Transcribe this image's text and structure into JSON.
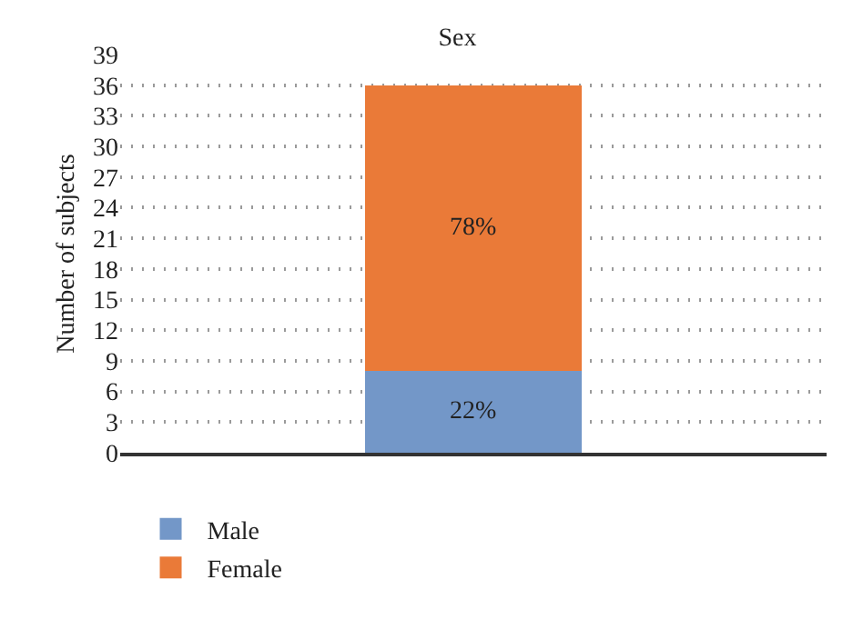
{
  "chart_data": {
    "type": "bar",
    "title": "Sex",
    "ylabel": "Number of subjects",
    "categories": [
      null
    ],
    "stacked": true,
    "series": [
      {
        "name": "Male",
        "color": "#7397c8",
        "values": [
          8
        ]
      },
      {
        "name": "Female",
        "color": "#ea7a38",
        "values": [
          28
        ]
      }
    ],
    "annotations": [
      "22%",
      "78%"
    ],
    "ylim": [
      0,
      39
    ],
    "yticks": [
      0,
      3,
      6,
      9,
      12,
      15,
      18,
      21,
      24,
      27,
      30,
      33,
      36,
      39
    ],
    "grid": "y",
    "legend": "bottom left"
  }
}
